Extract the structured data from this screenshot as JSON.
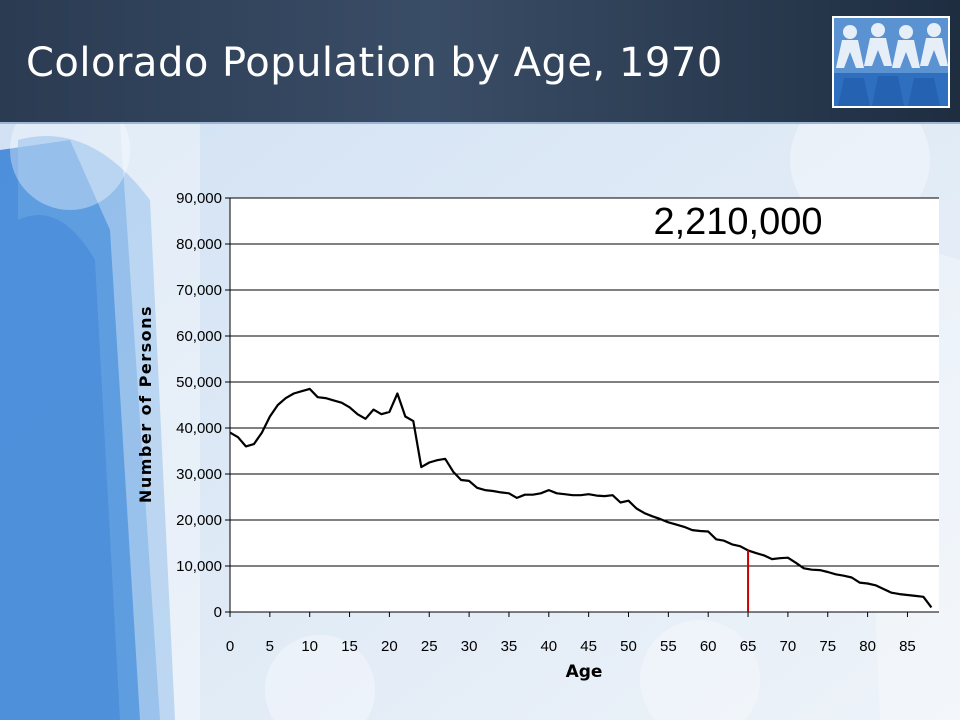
{
  "slide": {
    "title": "Colorado Population by Age, 1970"
  },
  "colors": {
    "line": "#000000",
    "marker": "#cc0000",
    "grid": "#000000"
  },
  "chart_data": {
    "type": "line",
    "title": "",
    "annotation": "2,210,000",
    "xlabel": "Age",
    "ylabel": "Number of Persons",
    "xlim": [
      0,
      89
    ],
    "ylim": [
      0,
      90000
    ],
    "x_ticks": [
      0,
      5,
      10,
      15,
      20,
      25,
      30,
      35,
      40,
      45,
      50,
      55,
      60,
      65,
      70,
      75,
      80,
      85
    ],
    "x_tick_labels": [
      "0",
      "5",
      "10",
      "15",
      "20",
      "25",
      "30",
      "35",
      "40",
      "45",
      "50",
      "55",
      "60",
      "65",
      "70",
      "75",
      "80",
      "85"
    ],
    "y_ticks": [
      0,
      10000,
      20000,
      30000,
      40000,
      50000,
      60000,
      70000,
      80000,
      90000
    ],
    "y_tick_labels": [
      "0",
      "10,000",
      "20,000",
      "30,000",
      "40,000",
      "50,000",
      "60,000",
      "70,000",
      "80,000",
      "90,000"
    ],
    "grid": true,
    "marker_x": 65,
    "series": [
      {
        "x": [
          0,
          1,
          2,
          3,
          4,
          5,
          6,
          7,
          8,
          9,
          10,
          11,
          12,
          13,
          14,
          15,
          16,
          17,
          18,
          19,
          20,
          21,
          22,
          23,
          24,
          25,
          26,
          27,
          28,
          29,
          30,
          31,
          32,
          33,
          34,
          35,
          36,
          37,
          38,
          39,
          40,
          41,
          42,
          43,
          44,
          45,
          46,
          47,
          48,
          49,
          50,
          51,
          52,
          53,
          54,
          55,
          56,
          57,
          58,
          59,
          60,
          61,
          62,
          63,
          64,
          65,
          66,
          67,
          68,
          69,
          70,
          71,
          72,
          73,
          74,
          75,
          76,
          77,
          78,
          79,
          80,
          81,
          82,
          83,
          84,
          85,
          86,
          87,
          88
        ],
        "values": [
          39000,
          38000,
          36000,
          36500,
          39000,
          42500,
          45000,
          46500,
          47500,
          48000,
          48500,
          46700,
          46500,
          46000,
          45500,
          44500,
          43000,
          42000,
          44000,
          43000,
          43500,
          47500,
          42500,
          41500,
          31500,
          32500,
          33000,
          33300,
          30500,
          28700,
          28500,
          27000,
          26500,
          26300,
          26000,
          25800,
          24800,
          25500,
          25500,
          25800,
          26500,
          25800,
          25600,
          25400,
          25400,
          25600,
          25300,
          25200,
          25400,
          23800,
          24200,
          22500,
          21500,
          20800,
          20200,
          19500,
          19000,
          18500,
          17800,
          17600,
          17500,
          15800,
          15500,
          14700,
          14300,
          13400,
          12800,
          12300,
          11500,
          11700,
          11800,
          10700,
          9500,
          9200,
          9100,
          8700,
          8200,
          7900,
          7500,
          6400,
          6200,
          5800,
          5000,
          4200,
          3900,
          3700,
          3500,
          3300,
          1000
        ]
      }
    ]
  }
}
